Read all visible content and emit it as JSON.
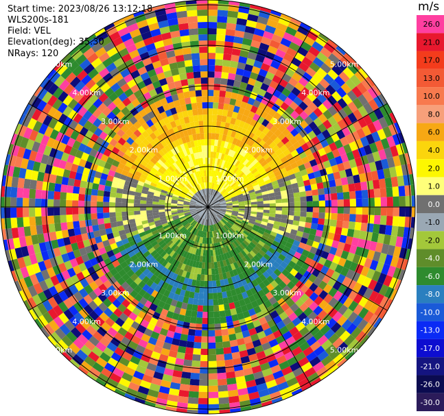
{
  "info": {
    "start_time": "Start time: 2023/08/26 13:12:18",
    "instrument": "WLS200s-181",
    "field": "Field: VEL",
    "elevation": "Elevation(deg): 35.30",
    "nrays": "NRays: 120"
  },
  "colorbar": {
    "unit": "m/s",
    "levels": [
      {
        "label": "26.0",
        "color": "#ff3fa0"
      },
      {
        "label": "21.0",
        "color": "#e8182e"
      },
      {
        "label": "17.0",
        "color": "#f43c1c"
      },
      {
        "label": "13.0",
        "color": "#f35a35"
      },
      {
        "label": "10.0",
        "color": "#f87a4e"
      },
      {
        "label": "8.0",
        "color": "#f7a07a"
      },
      {
        "label": "6.0",
        "color": "#f7a814"
      },
      {
        "label": "4.0",
        "color": "#fbd50d"
      },
      {
        "label": "2.0",
        "color": "#fdf700"
      },
      {
        "label": "1.0",
        "color": "#ffff7a"
      },
      {
        "label": "0.0",
        "color": "#707070"
      },
      {
        "label": "-1.0",
        "color": "#9aa8b4"
      },
      {
        "label": "-2.0",
        "color": "#a3c83a"
      },
      {
        "label": "-4.0",
        "color": "#5f8d2a"
      },
      {
        "label": "-6.0",
        "color": "#2e8b2e"
      },
      {
        "label": "-8.0",
        "color": "#2a7fbf"
      },
      {
        "label": "-10.0",
        "color": "#1a5ad8"
      },
      {
        "label": "-13.0",
        "color": "#0a2af5"
      },
      {
        "label": "-17.0",
        "color": "#0d0dd0"
      },
      {
        "label": "-21.0",
        "color": "#141480"
      },
      {
        "label": "-26.0",
        "color": "#0b0b50"
      },
      {
        "label": "-30.0",
        "color": "#2b1b5a"
      }
    ]
  },
  "range_labels": [
    "1.00km",
    "2.00km",
    "3.00km",
    "4.00km",
    "5.00km"
  ],
  "noise_palette": [
    "#e8182e",
    "#ff3fa0",
    "#0d0d7a",
    "#fdf700",
    "#f7a814",
    "#f35a35",
    "#2e8b2e",
    "#0a2af5",
    "#a3c83a",
    "#707070",
    "#f87a4e",
    "#5f8d2a",
    "#1a5ad8"
  ]
}
